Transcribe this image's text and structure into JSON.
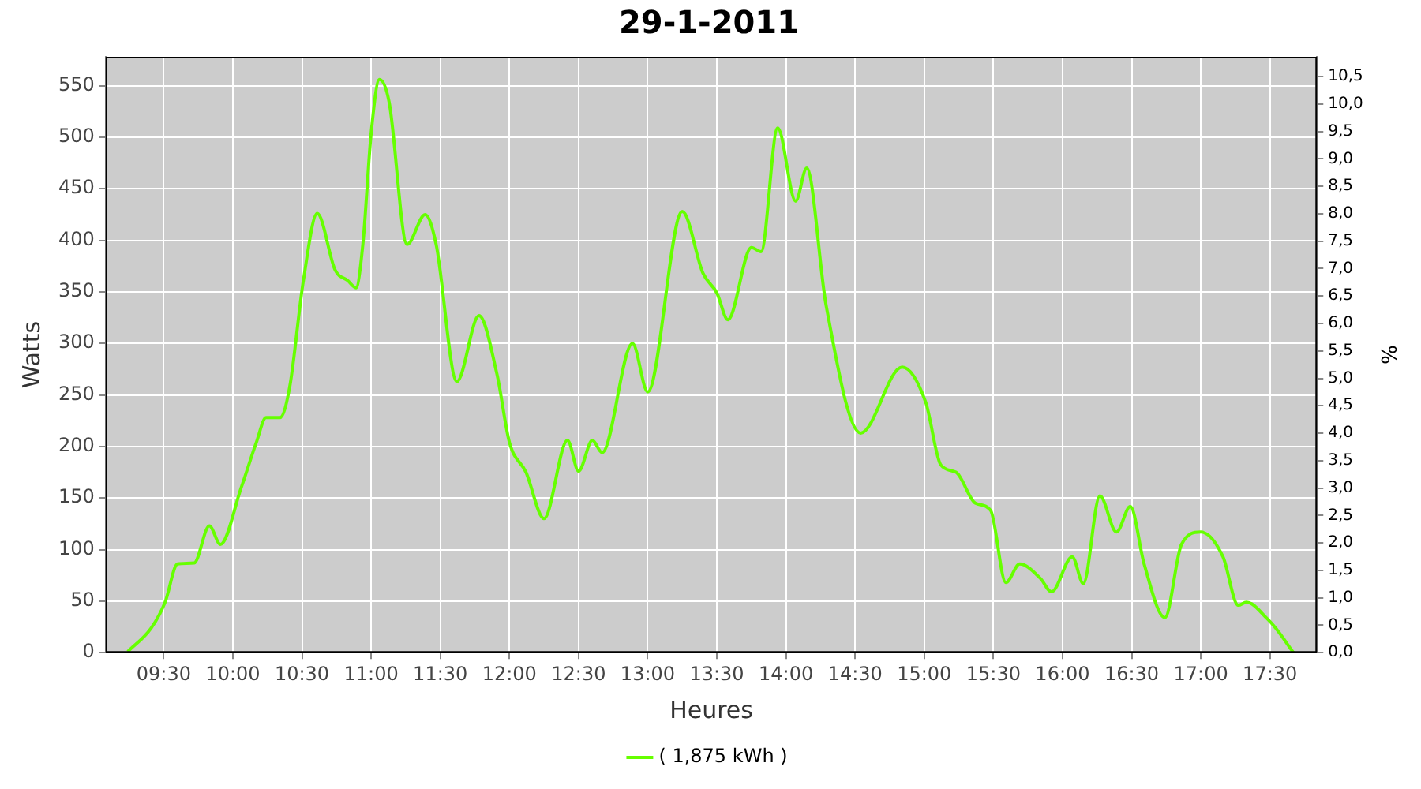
{
  "chart_data": {
    "type": "line",
    "title": "29-1-2011",
    "xlabel": "Heures",
    "ylabel": "Watts",
    "y2label": "%",
    "xlim": [
      9.08,
      17.84
    ],
    "xticks": [
      {
        "value": 9.5,
        "label": "09:30"
      },
      {
        "value": 10,
        "label": "10:00"
      },
      {
        "value": 10.5,
        "label": "10:30"
      },
      {
        "value": 11,
        "label": "11:00"
      },
      {
        "value": 11.5,
        "label": "11:30"
      },
      {
        "value": 12,
        "label": "12:00"
      },
      {
        "value": 12.5,
        "label": "12:30"
      },
      {
        "value": 13,
        "label": "13:00"
      },
      {
        "value": 13.5,
        "label": "13:30"
      },
      {
        "value": 14,
        "label": "14:00"
      },
      {
        "value": 14.5,
        "label": "14:30"
      },
      {
        "value": 15,
        "label": "15:00"
      },
      {
        "value": 15.5,
        "label": "15:30"
      },
      {
        "value": 16,
        "label": "16:00"
      },
      {
        "value": 16.5,
        "label": "16:30"
      },
      {
        "value": 17,
        "label": "17:00"
      },
      {
        "value": 17.5,
        "label": "17:30"
      }
    ],
    "ylim": [
      0,
      578
    ],
    "yticks": [
      0,
      50,
      100,
      150,
      200,
      250,
      300,
      350,
      400,
      450,
      500,
      550
    ],
    "y2lim": [
      0,
      10.86
    ],
    "y2ticks": [
      {
        "value": 0,
        "label": "0,0"
      },
      {
        "value": 0.5,
        "label": "0,5"
      },
      {
        "value": 1,
        "label": "1,0"
      },
      {
        "value": 1.5,
        "label": "1,5"
      },
      {
        "value": 2,
        "label": "2,0"
      },
      {
        "value": 2.5,
        "label": "2,5"
      },
      {
        "value": 3,
        "label": "3,0"
      },
      {
        "value": 3.5,
        "label": "3,5"
      },
      {
        "value": 4,
        "label": "4,0"
      },
      {
        "value": 4.5,
        "label": "4,5"
      },
      {
        "value": 5,
        "label": "5,0"
      },
      {
        "value": 5.5,
        "label": "5,5"
      },
      {
        "value": 6,
        "label": "6,0"
      },
      {
        "value": 6.5,
        "label": "6,5"
      },
      {
        "value": 7,
        "label": "7,0"
      },
      {
        "value": 7.5,
        "label": "7,5"
      },
      {
        "value": 8,
        "label": "8,0"
      },
      {
        "value": 8.5,
        "label": "8,5"
      },
      {
        "value": 9,
        "label": "9,0"
      },
      {
        "value": 9.5,
        "label": "9,5"
      },
      {
        "value": 10,
        "label": "10,0"
      },
      {
        "value": 10.5,
        "label": "10,5"
      }
    ],
    "grid": true,
    "legend": "bottom",
    "marker": "none",
    "line_style": "solid",
    "x": [
      9.24,
      9.41,
      9.51,
      9.6,
      9.72,
      9.83,
      9.91,
      10.06,
      10.17,
      10.24,
      10.34,
      10.41,
      10.51,
      10.61,
      10.74,
      10.83,
      10.89,
      10.94,
      11.0,
      11.06,
      11.13,
      11.26,
      11.39,
      11.47,
      11.62,
      11.78,
      11.91,
      12.0,
      12.12,
      12.25,
      12.42,
      12.5,
      12.6,
      12.67,
      12.89,
      13.0,
      13.25,
      13.4,
      13.5,
      13.58,
      13.75,
      13.82,
      13.94,
      14.07,
      14.15,
      14.29,
      14.54,
      14.84,
      15.01,
      15.12,
      15.23,
      15.37,
      15.48,
      15.59,
      15.69,
      15.84,
      15.92,
      16.07,
      16.15,
      16.27,
      16.39,
      16.49,
      16.59,
      16.74,
      16.86,
      17.0,
      17.16,
      17.27,
      17.33,
      17.48,
      17.54,
      17.67
    ],
    "series": [
      {
        "name": "( 1,875 kWh )",
        "color": "#66ff00",
        "values": [
          1,
          24,
          49,
          86,
          87,
          123,
          105,
          160,
          204,
          228,
          228,
          257,
          361,
          426,
          371,
          361,
          354,
          396,
          504,
          556,
          534,
          396,
          425,
          396,
          263,
          327,
          270,
          204,
          175,
          130,
          206,
          176,
          206,
          194,
          300,
          253,
          428,
          368,
          349,
          323,
          393,
          389,
          509,
          438,
          470,
          337,
          213,
          277,
          243,
          182,
          175,
          145,
          138,
          68,
          86,
          72,
          59,
          93,
          67,
          152,
          117,
          142,
          86,
          34,
          105,
          117,
          93,
          46,
          49,
          33,
          24,
          0
        ]
      }
    ]
  }
}
